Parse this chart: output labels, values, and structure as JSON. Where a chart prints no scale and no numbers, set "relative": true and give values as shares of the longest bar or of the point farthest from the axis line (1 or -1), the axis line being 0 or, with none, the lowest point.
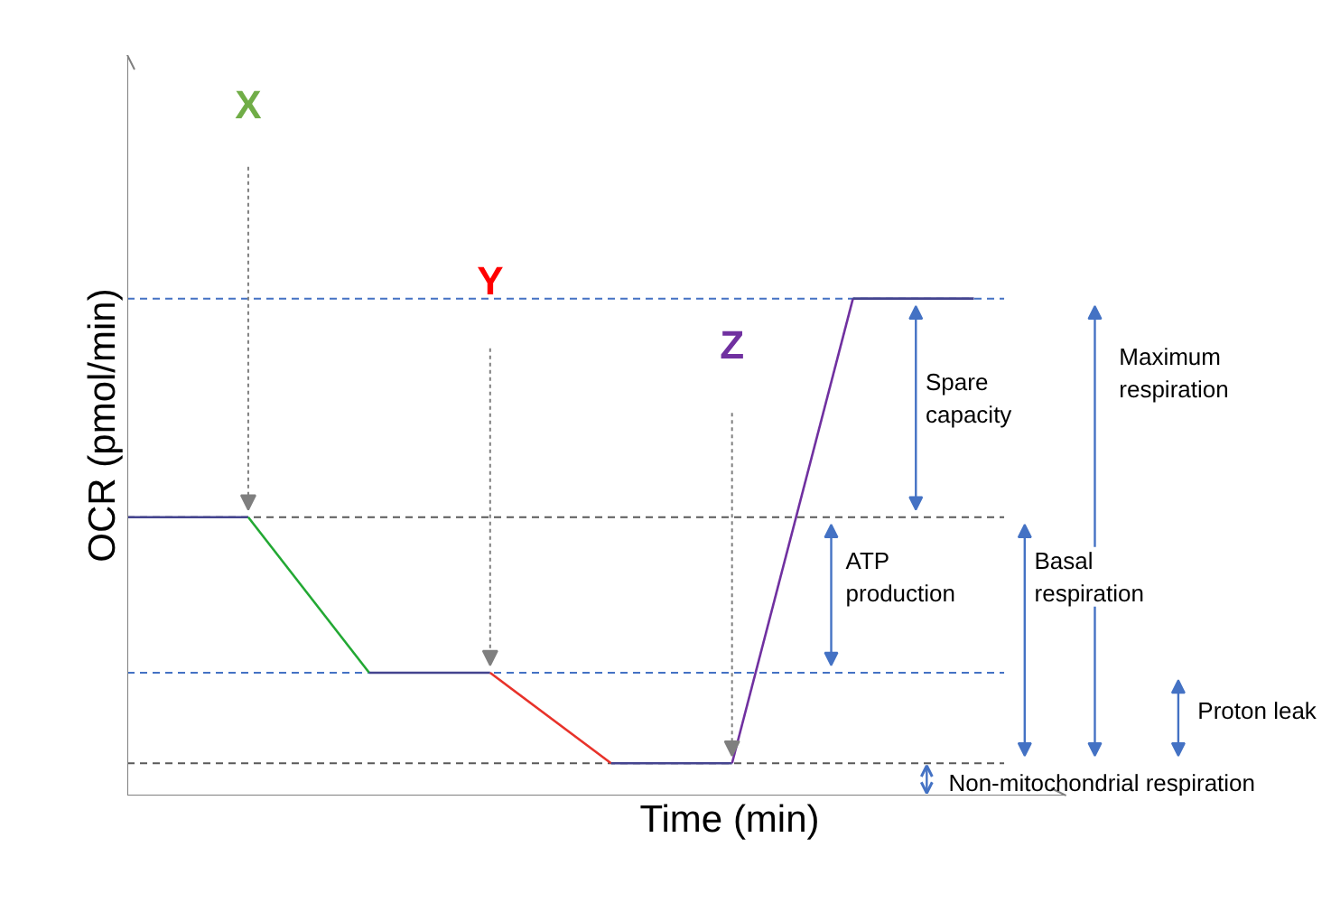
{
  "chart_data": {
    "type": "line",
    "relative": true,
    "xlabel": "Time (min)",
    "ylabel": "OCR (pmol/min)",
    "categories": [
      null,
      null,
      null,
      null,
      null,
      null,
      null,
      null
    ],
    "series": [
      {
        "color": "#44448f",
        "values": [
          0.56,
          0.56,
          null,
          null,
          null,
          null,
          null,
          null
        ]
      },
      {
        "color": "#22a833",
        "values": [
          null,
          0.56,
          0.247,
          null,
          null,
          null,
          null,
          null
        ]
      },
      {
        "color": "#44448f",
        "values": [
          null,
          null,
          0.247,
          0.247,
          null,
          null,
          null,
          null
        ]
      },
      {
        "color": "#e8322a",
        "values": [
          null,
          null,
          null,
          0.247,
          0.065,
          null,
          null,
          null
        ]
      },
      {
        "color": "#44448f",
        "values": [
          null,
          null,
          null,
          null,
          0.065,
          0.065,
          null,
          null
        ]
      },
      {
        "color": "#7030a0",
        "values": [
          null,
          null,
          null,
          null,
          null,
          0.065,
          1,
          null
        ]
      },
      {
        "color": "#44448f",
        "values": [
          null,
          null,
          null,
          null,
          null,
          null,
          1,
          1
        ]
      }
    ],
    "ref_lines": [
      {
        "axis": "y",
        "value": 1,
        "color": "#4472c4",
        "line_style": "dashed"
      },
      {
        "axis": "y",
        "value": 0.56,
        "color": "#595959",
        "line_style": "dashed"
      },
      {
        "axis": "y",
        "value": 0.247,
        "color": "#4472c4",
        "line_style": "dashed"
      },
      {
        "axis": "y",
        "value": 0.065,
        "color": "#595959",
        "line_style": "dashed"
      }
    ],
    "annotations": [
      "X",
      "Y",
      "Z",
      "Spare capacity",
      "ATP production",
      "Basal respiration",
      "Maximum respiration",
      "Proton leak",
      "Non-mitochondrial respiration"
    ],
    "marker": "none",
    "line_style": "solid"
  }
}
